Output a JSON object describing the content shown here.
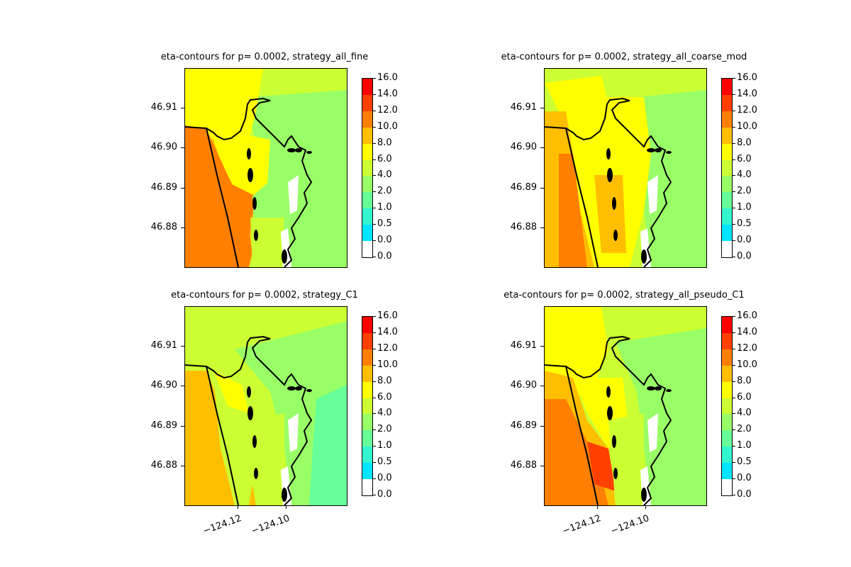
{
  "chart_data": [
    {
      "type": "heatmap",
      "title": "eta-contours for p= 0.0002, strategy_all_fine",
      "yticks": [
        "46.91",
        "46.90",
        "46.89",
        "46.88"
      ],
      "xticks": [],
      "colorbar": {
        "levels": [
          "0.0",
          "0.0",
          "0.5",
          "1.0",
          "2.0",
          "4.0",
          "6.0",
          "8.0",
          "10.0",
          "12.0",
          "14.0",
          "16.0"
        ],
        "colors": [
          "#ffffff",
          "#00e5ff",
          "#33f5d0",
          "#66ff99",
          "#99ff66",
          "#ccff33",
          "#ffff00",
          "#ffbf00",
          "#ff8000",
          "#ff4000",
          "#ff0000"
        ]
      }
    },
    {
      "type": "heatmap",
      "title": "eta-contours for p= 0.0002, strategy_all_coarse_mod",
      "yticks": [
        "46.91",
        "46.90",
        "46.89",
        "46.88"
      ],
      "xticks": [],
      "colorbar": {
        "levels": [
          "0.0",
          "0.0",
          "0.5",
          "1.0",
          "2.0",
          "4.0",
          "6.0",
          "8.0",
          "10.0",
          "12.0",
          "14.0",
          "16.0"
        ],
        "colors": [
          "#ffffff",
          "#00e5ff",
          "#33f5d0",
          "#66ff99",
          "#99ff66",
          "#ccff33",
          "#ffff00",
          "#ffbf00",
          "#ff8000",
          "#ff4000",
          "#ff0000"
        ]
      }
    },
    {
      "type": "heatmap",
      "title": "eta-contours for p= 0.0002, strategy_C1",
      "yticks": [
        "46.91",
        "46.90",
        "46.89",
        "46.88"
      ],
      "xticks": [
        "−124.12",
        "−124.10"
      ],
      "colorbar": {
        "levels": [
          "0.0",
          "0.0",
          "0.5",
          "1.0",
          "2.0",
          "4.0",
          "6.0",
          "8.0",
          "10.0",
          "12.0",
          "14.0",
          "16.0"
        ],
        "colors": [
          "#ffffff",
          "#00e5ff",
          "#33f5d0",
          "#66ff99",
          "#99ff66",
          "#ccff33",
          "#ffff00",
          "#ffbf00",
          "#ff8000",
          "#ff4000",
          "#ff0000"
        ]
      }
    },
    {
      "type": "heatmap",
      "title": "eta-contours for p= 0.0002, strategy_all_pseudo_C1",
      "yticks": [
        "46.91",
        "46.90",
        "46.89",
        "46.88"
      ],
      "xticks": [
        "−124.12",
        "−124.10"
      ],
      "colorbar": {
        "levels": [
          "0.0",
          "0.0",
          "0.5",
          "1.0",
          "2.0",
          "4.0",
          "6.0",
          "8.0",
          "10.0",
          "12.0",
          "14.0",
          "16.0"
        ],
        "colors": [
          "#ffffff",
          "#00e5ff",
          "#33f5d0",
          "#66ff99",
          "#99ff66",
          "#ccff33",
          "#ffff00",
          "#ffbf00",
          "#ff8000",
          "#ff4000",
          "#ff0000"
        ]
      }
    }
  ]
}
